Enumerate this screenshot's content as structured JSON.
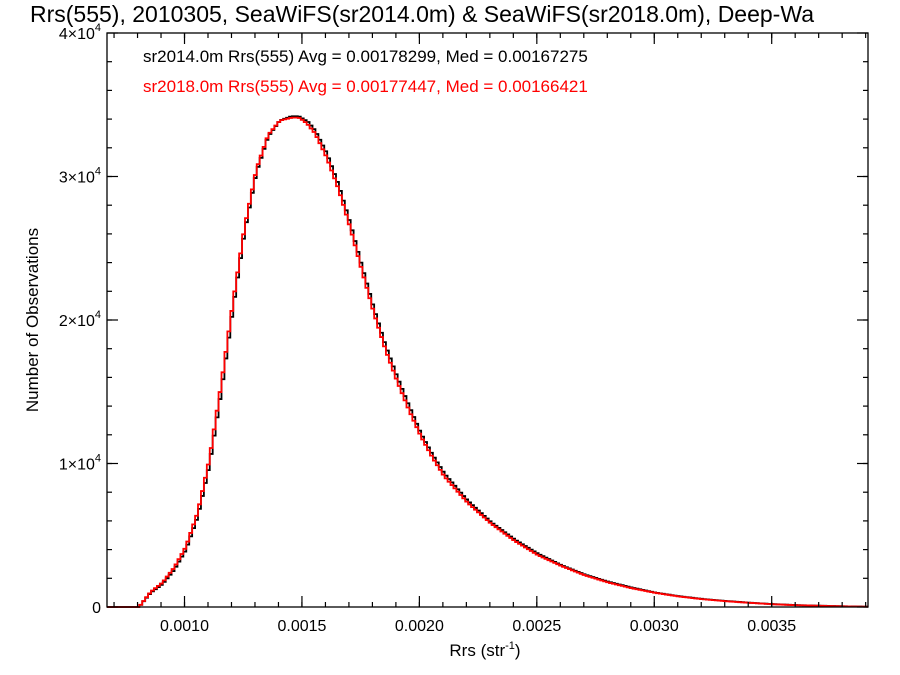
{
  "chart_data": {
    "type": "line",
    "title": "Rrs(555), 2010305, SeaWiFS(sr2014.0m) & SeaWiFS(sr2018.0m), Deep-Wa",
    "xlabel": "Rrs (str",
    "xlabel_sup": "-1",
    "xlabel_end": ")",
    "ylabel": "Number of Observations",
    "xlim": [
      0.00067,
      0.00391
    ],
    "ylim": [
      0,
      40000
    ],
    "x_ticks": [
      {
        "value": 0.001,
        "label": "0.0010"
      },
      {
        "value": 0.0015,
        "label": "0.0015"
      },
      {
        "value": 0.002,
        "label": "0.0020"
      },
      {
        "value": 0.0025,
        "label": "0.0025"
      },
      {
        "value": 0.003,
        "label": "0.0030"
      },
      {
        "value": 0.0035,
        "label": "0.0035"
      }
    ],
    "y_ticks": [
      {
        "value": 0,
        "label": "0",
        "sup": ""
      },
      {
        "value": 10000,
        "label": "1×10",
        "sup": "4"
      },
      {
        "value": 20000,
        "label": "2×10",
        "sup": "4"
      },
      {
        "value": 30000,
        "label": "3×10",
        "sup": "4"
      },
      {
        "value": 40000,
        "label": "4×10",
        "sup": "4"
      }
    ],
    "legend": [
      {
        "text": "sr2014.0m Rrs(555) Avg = 0.00178299, Med = 0.00167275",
        "color": "#000000"
      },
      {
        "text": "sr2018.0m Rrs(555) Avg = 0.00177447, Med = 0.00166421",
        "color": "#ff0000"
      }
    ],
    "series": [
      {
        "color": "#000000",
        "x": [
          0.00067,
          0.0008,
          0.00085,
          0.0009,
          0.00095,
          0.001,
          0.00105,
          0.0011,
          0.00115,
          0.0012,
          0.00125,
          0.0013,
          0.00135,
          0.0014,
          0.00145,
          0.00148,
          0.0015,
          0.00152,
          0.00155,
          0.0016,
          0.00165,
          0.0017,
          0.00175,
          0.0018,
          0.00185,
          0.0019,
          0.00195,
          0.002,
          0.00205,
          0.0021,
          0.0022,
          0.0023,
          0.0024,
          0.0025,
          0.0026,
          0.0027,
          0.0028,
          0.0029,
          0.003,
          0.0031,
          0.0032,
          0.0033,
          0.0034,
          0.0035,
          0.0036,
          0.0037,
          0.0038,
          0.00391
        ],
        "y": [
          0,
          0,
          1000,
          1600,
          2600,
          4000,
          6300,
          9900,
          15000,
          20800,
          26200,
          30300,
          32800,
          33900,
          34200,
          34200,
          34000,
          33800,
          33200,
          31600,
          29400,
          26700,
          23700,
          20800,
          18200,
          16000,
          14000,
          12100,
          10600,
          9300,
          7400,
          5900,
          4700,
          3700,
          2900,
          2250,
          1750,
          1350,
          1000,
          750,
          560,
          420,
          300,
          200,
          130,
          90,
          50,
          20
        ]
      },
      {
        "color": "#ff0000",
        "x": [
          0.00067,
          0.0008,
          0.00085,
          0.0009,
          0.00095,
          0.001,
          0.00105,
          0.0011,
          0.00115,
          0.0012,
          0.00125,
          0.0013,
          0.00135,
          0.0014,
          0.00145,
          0.00148,
          0.0015,
          0.00152,
          0.00155,
          0.0016,
          0.00165,
          0.0017,
          0.00175,
          0.0018,
          0.00185,
          0.0019,
          0.00195,
          0.002,
          0.00205,
          0.0021,
          0.0022,
          0.0023,
          0.0024,
          0.0025,
          0.0026,
          0.0027,
          0.0028,
          0.0029,
          0.003,
          0.0031,
          0.0032,
          0.0033,
          0.0034,
          0.0035,
          0.0036,
          0.0037,
          0.0038,
          0.00391
        ],
        "y": [
          0,
          0,
          1050,
          1700,
          2750,
          4200,
          6600,
          10300,
          15500,
          21200,
          26500,
          30500,
          32900,
          33900,
          34100,
          34100,
          33900,
          33600,
          33000,
          31300,
          29100,
          26400,
          23400,
          20500,
          17900,
          15700,
          13700,
          11900,
          10400,
          9100,
          7250,
          5800,
          4600,
          3600,
          2850,
          2200,
          1700,
          1300,
          980,
          730,
          540,
          400,
          290,
          190,
          125,
          85,
          45,
          18
        ]
      }
    ]
  }
}
